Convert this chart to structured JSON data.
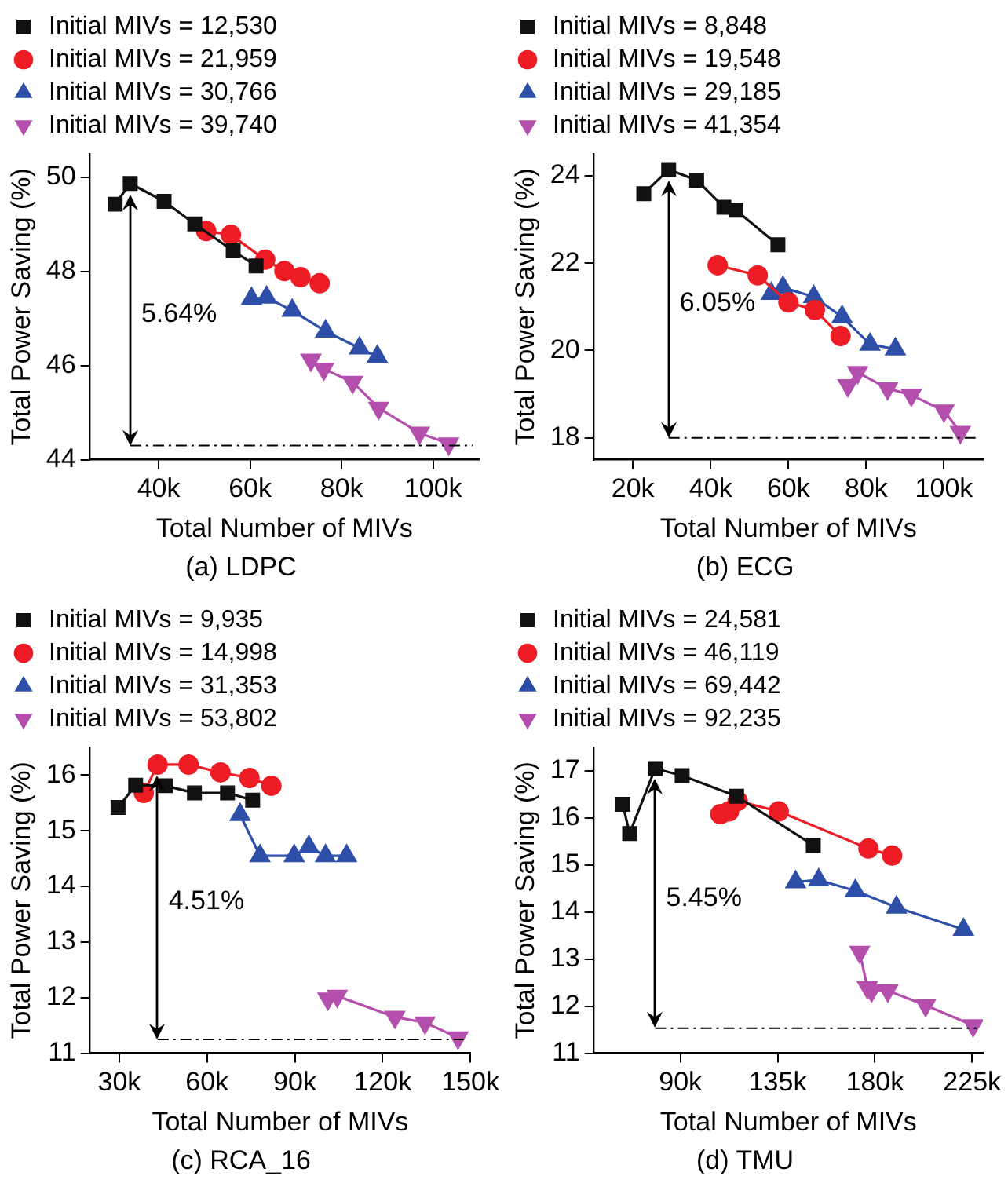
{
  "chart_data": [
    {
      "type": "line",
      "title": "(a) LDPC",
      "xlabel": "Total Number of MIVs",
      "ylabel": "Total Power Saving (%)",
      "legend": "top",
      "line_style": "solid",
      "xlim": [
        25000,
        110000
      ],
      "xticks": [
        {
          "value": 40000,
          "label": "40k"
        },
        {
          "value": 60000,
          "label": "60k"
        },
        {
          "value": 80000,
          "label": "80k"
        },
        {
          "value": 100000,
          "label": "100k"
        }
      ],
      "ylim": [
        44,
        50.5
      ],
      "yticks": [
        44,
        46,
        48,
        50
      ],
      "series": [
        {
          "name": "Initial MIVs = 12,530",
          "color": "#111111",
          "marker": "square",
          "x": [
            30500,
            33800,
            41200,
            47900,
            56300,
            61300
          ],
          "values": [
            49.43,
            49.87,
            49.49,
            49.01,
            48.44,
            48.12
          ]
        },
        {
          "name": "Initial MIVs = 21,959",
          "color": "#ee1c25",
          "marker": "circle",
          "x": [
            50400,
            55800,
            63300,
            67500,
            71000,
            75200
          ],
          "values": [
            48.86,
            48.78,
            48.25,
            48.01,
            47.88,
            47.75
          ]
        },
        {
          "name": "Initial MIVs = 30,766",
          "color": "#2e4fa8",
          "marker": "triangle",
          "x": [
            60300,
            63600,
            69200,
            76500,
            83900,
            87800
          ],
          "values": [
            47.42,
            47.45,
            47.17,
            46.73,
            46.37,
            46.19
          ]
        },
        {
          "name": "Initial MIVs = 39,740",
          "color": "#b44fae",
          "marker": "triangle-down",
          "x": [
            73300,
            76100,
            82400,
            88100,
            97000,
            103400
          ],
          "values": [
            46.12,
            45.93,
            45.65,
            45.1,
            44.57,
            44.34
          ]
        }
      ],
      "ref_lines": [
        {
          "axis": "y",
          "value": 44.3,
          "line_style": "dashed"
        }
      ],
      "annotations": [
        "5.64%"
      ]
    },
    {
      "type": "line",
      "title": "(b) ECG",
      "xlabel": "Total Number of MIVs",
      "ylabel": "Total Power Saving (%)",
      "legend": "top",
      "line_style": "solid",
      "xlim": [
        10000,
        110000
      ],
      "xticks": [
        {
          "value": 20000,
          "label": "20k"
        },
        {
          "value": 40000,
          "label": "40k"
        },
        {
          "value": 60000,
          "label": "60k"
        },
        {
          "value": 80000,
          "label": "80k"
        },
        {
          "value": 100000,
          "label": "100k"
        }
      ],
      "ylim": [
        17.5,
        24.5
      ],
      "yticks": [
        18,
        20,
        22,
        24
      ],
      "series": [
        {
          "name": "Initial MIVs = 8,848",
          "color": "#111111",
          "marker": "square",
          "x": [
            22800,
            29200,
            36400,
            43400,
            46500,
            57300
          ],
          "values": [
            23.59,
            24.14,
            23.9,
            23.28,
            23.21,
            22.42
          ]
        },
        {
          "name": "Initial MIVs = 19,548",
          "color": "#ee1c25",
          "marker": "circle",
          "x": [
            41800,
            52100,
            60000,
            66800,
            73400
          ],
          "values": [
            21.95,
            21.72,
            21.1,
            20.93,
            20.33
          ]
        },
        {
          "name": "Initial MIVs = 29,185",
          "color": "#2e4fa8",
          "marker": "triangle",
          "x": [
            55600,
            58600,
            66500,
            73800,
            81000,
            87500
          ],
          "values": [
            21.3,
            21.44,
            21.23,
            20.77,
            20.14,
            20.03
          ]
        },
        {
          "name": "Initial MIVs = 41,354",
          "color": "#b44fae",
          "marker": "triangle-down",
          "x": [
            75300,
            77800,
            85500,
            91600,
            100000,
            104200
          ],
          "values": [
            19.2,
            19.5,
            19.13,
            18.98,
            18.62,
            18.13
          ]
        }
      ],
      "ref_lines": [
        {
          "axis": "y",
          "value": 18,
          "line_style": "dashed"
        }
      ],
      "annotations": [
        "6.05%"
      ]
    },
    {
      "type": "line",
      "title": "(c) RCA_16",
      "xlabel": "Total Number of MIVs",
      "ylabel": "Total Power Saving (%)",
      "legend": "top",
      "line_style": "solid",
      "xlim": [
        20000,
        150000
      ],
      "xticks": [
        {
          "value": 30000,
          "label": "30k"
        },
        {
          "value": 60000,
          "label": "60k"
        },
        {
          "value": 90000,
          "label": "90k"
        },
        {
          "value": 120000,
          "label": "120k"
        },
        {
          "value": 150000,
          "label": "150k"
        }
      ],
      "ylim": [
        11,
        16.5
      ],
      "yticks": [
        11,
        12,
        13,
        14,
        15,
        16
      ],
      "series": [
        {
          "name": "Initial MIVs = 9,935",
          "color": "#111111",
          "marker": "square",
          "x": [
            29600,
            35600,
            45800,
            55700,
            67000,
            75600
          ],
          "values": [
            15.42,
            15.82,
            15.81,
            15.68,
            15.68,
            15.55
          ]
        },
        {
          "name": "Initial MIVs = 14,998",
          "color": "#ee1c25",
          "marker": "circle",
          "x": [
            38400,
            43100,
            53700,
            64600,
            74500,
            82000
          ],
          "values": [
            15.68,
            16.19,
            16.19,
            16.05,
            15.95,
            15.81
          ]
        },
        {
          "name": "Initial MIVs = 31,353",
          "color": "#2e4fa8",
          "marker": "triangle",
          "x": [
            71300,
            78100,
            89800,
            94800,
            100500,
            107700
          ],
          "values": [
            15.29,
            14.55,
            14.55,
            14.71,
            14.55,
            14.55
          ]
        },
        {
          "name": "Initial MIVs = 53,802",
          "color": "#b44fae",
          "marker": "triangle-down",
          "x": [
            101300,
            104500,
            124200,
            134500,
            145800
          ],
          "values": [
            11.98,
            12.03,
            11.65,
            11.55,
            11.28
          ]
        }
      ],
      "ref_lines": [
        {
          "axis": "y",
          "value": 11.25,
          "line_style": "dashed"
        }
      ],
      "annotations": [
        "4.51%"
      ]
    },
    {
      "type": "line",
      "title": "(d) TMU",
      "xlabel": "Total Number of MIVs",
      "ylabel": "Total Power Saving (%)",
      "legend": "top",
      "line_style": "solid",
      "xlim": [
        50000,
        230000
      ],
      "xticks": [
        {
          "value": 90000,
          "label": "90k"
        },
        {
          "value": 135000,
          "label": "135k"
        },
        {
          "value": 180000,
          "label": "180k"
        },
        {
          "value": 225000,
          "label": "225k"
        }
      ],
      "ylim": [
        11,
        17.5
      ],
      "yticks": [
        11,
        12,
        13,
        14,
        15,
        16,
        17
      ],
      "series": [
        {
          "name": "Initial MIVs = 24,581",
          "color": "#111111",
          "marker": "square",
          "x": [
            63300,
            66500,
            78300,
            90800,
            116000,
            151500
          ],
          "values": [
            16.29,
            15.67,
            17.05,
            16.9,
            16.46,
            15.42
          ]
        },
        {
          "name": "Initial MIVs = 46,119",
          "color": "#ee1c25",
          "marker": "circle",
          "x": [
            108500,
            112500,
            116500,
            135500,
            177000,
            188000
          ],
          "values": [
            16.08,
            16.14,
            16.36,
            16.14,
            15.35,
            15.2
          ]
        },
        {
          "name": "Initial MIVs = 69,442",
          "color": "#2e4fa8",
          "marker": "triangle",
          "x": [
            143300,
            154000,
            171000,
            190000,
            221000
          ],
          "values": [
            14.64,
            14.68,
            14.45,
            14.1,
            13.63
          ]
        },
        {
          "name": "Initial MIVs = 92,235",
          "color": "#b44fae",
          "marker": "triangle-down",
          "x": [
            173000,
            176500,
            178500,
            186000,
            203500,
            225500
          ],
          "values": [
            13.15,
            12.4,
            12.33,
            12.33,
            12.02,
            11.59
          ]
        }
      ],
      "ref_lines": [
        {
          "axis": "y",
          "value": 11.53,
          "line_style": "dashed"
        }
      ],
      "annotations": [
        "5.45%"
      ]
    }
  ]
}
